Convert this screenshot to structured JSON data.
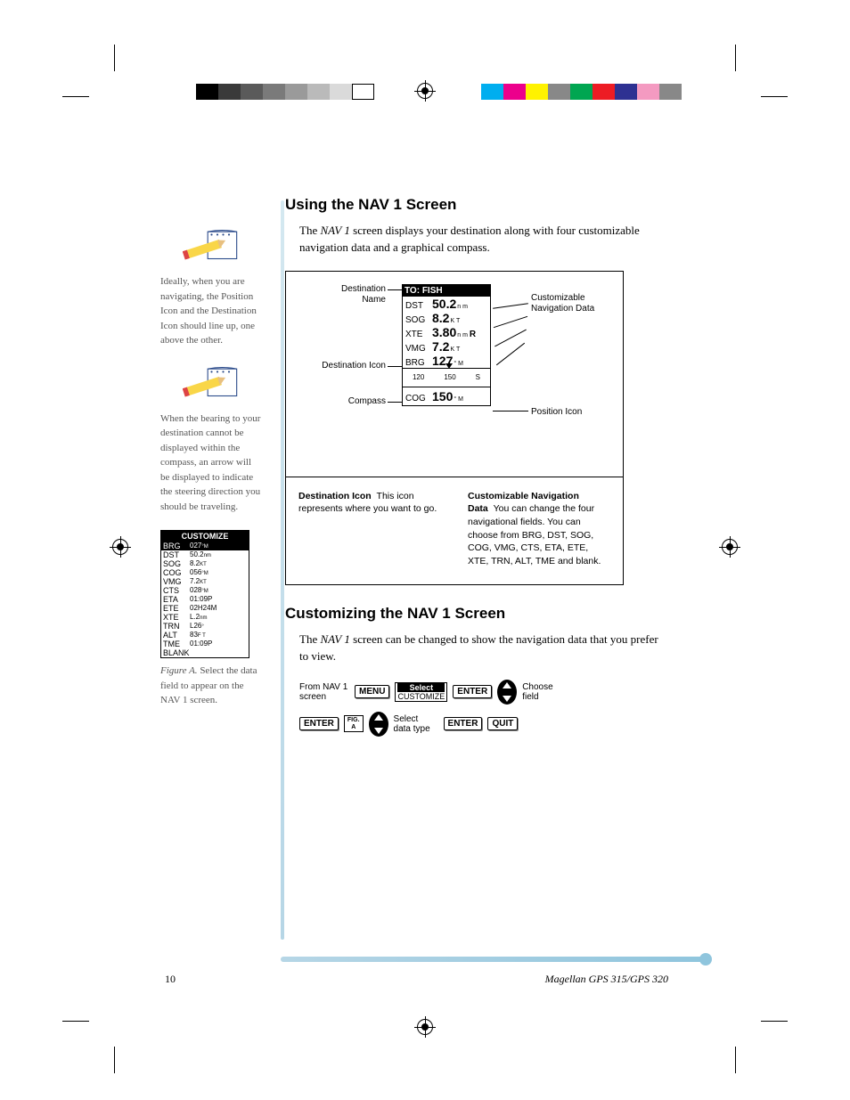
{
  "colorbar_left": [
    "#000000",
    "#3a3a3a",
    "#5a5a5a",
    "#7a7a7a",
    "#9a9a9a",
    "#bababa",
    "#dadada",
    "#ffffff"
  ],
  "colorbar_right": [
    "#00aeef",
    "#ec008c",
    "#fff200",
    "#888888",
    "#00a651",
    "#ed1c24",
    "#2e3192",
    "#f49ac1",
    "#888888"
  ],
  "sidebar": {
    "note1": "Ideally, when you are navigating, the Position Icon and the Destination Icon should line up, one above the other.",
    "note2": "When the bearing to your destination cannot be displayed within the compass, an arrow will be displayed to indicate the steering direction you should be traveling.",
    "customize_header": "CUSTOMIZE",
    "rows": [
      {
        "k": "BRG",
        "v": "027",
        "u": "°M",
        "sel": true
      },
      {
        "k": "DST",
        "v": "50.2",
        "u": "nm"
      },
      {
        "k": "SOG",
        "v": "8.2",
        "u": "KT"
      },
      {
        "k": "COG",
        "v": "056",
        "u": "°M"
      },
      {
        "k": "VMG",
        "v": "7.2",
        "u": "KT"
      },
      {
        "k": "CTS",
        "v": "028",
        "u": "°M"
      },
      {
        "k": "ETA",
        "v": "01:09P",
        "u": ""
      },
      {
        "k": "ETE",
        "v": "02H24M",
        "u": ""
      },
      {
        "k": "XTE",
        "v": "L.2",
        "u": "nm"
      },
      {
        "k": "TRN",
        "v": "L26",
        "u": "°"
      },
      {
        "k": "ALT",
        "v": "83",
        "u": "F T"
      },
      {
        "k": "TME",
        "v": "01:09P",
        "u": ""
      },
      {
        "k": "BLANK",
        "v": "",
        "u": ""
      }
    ],
    "fig_label": "Figure A.",
    "fig_text": "Select the data field to appear on the NAV 1 screen."
  },
  "section1": {
    "heading": "Using the NAV 1 Screen",
    "para": [
      "The ",
      "NAV 1",
      " screen displays your destination along with four customizable navigation data and a graphical compass."
    ],
    "diagram": {
      "lcd_title": "TO: FISH",
      "rows": [
        {
          "k": "DST",
          "v": "50.2",
          "u": "n m"
        },
        {
          "k": "SOG",
          "v": "8.2",
          "u": "K T"
        },
        {
          "k": "XTE",
          "v": "3.80",
          "u": "n m",
          "suffix": "R"
        },
        {
          "k": "VMG",
          "v": "7.2",
          "u": "K T"
        },
        {
          "k": "BRG",
          "v": "127",
          "u": "° M"
        }
      ],
      "compass_ticks": [
        "120",
        "150",
        "S"
      ],
      "cog": {
        "k": "COG",
        "v": "150",
        "u": "° M"
      },
      "labels": {
        "dest_name": "Destination Name",
        "dest_icon": "Destination Icon",
        "compass": "Compass",
        "cust_nav": "Customizable Navigation Data",
        "pos_icon": "Position Icon"
      },
      "lower_left_bold": "Destination Icon",
      "lower_left": "This icon represents where you want to go.",
      "lower_right_bold": "Customizable Navigation Data",
      "lower_right": "You can change the four navigational fields.  You can choose from BRG, DST, SOG, COG, VMG, CTS, ETA, ETE, XTE, TRN, ALT, TME and blank."
    }
  },
  "section2": {
    "heading": "Customizing the NAV 1 Screen",
    "para": [
      "The ",
      "NAV 1",
      " screen can be changed to show the navigation data that you prefer to view."
    ],
    "flow": {
      "from": "From NAV 1 screen",
      "menu": "MENU",
      "select": "Select",
      "customize": "CUSTOMIZE",
      "enter": "ENTER",
      "choose_field": "Choose field",
      "fig_a": "FIG. A",
      "select_type": "Select data type",
      "quit": "QUIT"
    }
  },
  "footer": {
    "page": "10",
    "model": "Magellan GPS 315/GPS 320"
  }
}
